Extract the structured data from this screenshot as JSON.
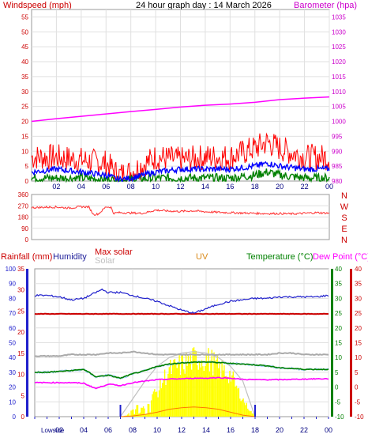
{
  "chart_data": [
    {
      "type": "line",
      "title": "24 hour graph day : 14 March 2026",
      "left_axis_label": "Windspeed (mph)",
      "right_axis_label": "Barometer (hpa)",
      "left_ticks": [
        "0",
        "5",
        "10",
        "15",
        "20",
        "25",
        "30",
        "35",
        "40",
        "45",
        "50",
        "55"
      ],
      "right_ticks": [
        "980",
        "985",
        "990",
        "995",
        "1000",
        "1005",
        "1010",
        "1015",
        "1020",
        "1025",
        "1030",
        "1035"
      ],
      "x_ticks": [
        "02",
        "04",
        "06",
        "08",
        "10",
        "12",
        "14",
        "16",
        "18",
        "20",
        "22",
        "00"
      ],
      "ylim_left": [
        0,
        57.5
      ],
      "ylim_right": [
        980,
        1037.5
      ],
      "grid": true,
      "colors": {
        "windspeed": "#ff0000",
        "average": "#0000ff",
        "calm": "#008000",
        "barometer": "#ff00ff",
        "labels": "#cc0000",
        "baro_labels": "#cc00cc"
      },
      "series": [
        {
          "name": "Barometer (hpa)",
          "x": [
            0,
            2,
            4,
            6,
            8,
            10,
            12,
            14,
            16,
            18,
            20,
            22,
            24
          ],
          "values": [
            1000.0,
            1000.9,
            1001.7,
            1002.5,
            1003.3,
            1004.0,
            1004.8,
            1005.4,
            1005.8,
            1006.4,
            1007.3,
            1007.8,
            1008.2
          ]
        },
        {
          "name": "Windspeed (mph)",
          "x": [
            0,
            2,
            4,
            6,
            7,
            8,
            10,
            12,
            14,
            16,
            18,
            19,
            20,
            22,
            24
          ],
          "values": [
            8,
            8,
            7,
            6,
            2,
            3,
            8,
            7,
            8,
            8,
            11,
            13,
            11,
            8,
            8
          ]
        },
        {
          "name": "",
          "x": [
            0,
            2,
            4,
            6,
            7,
            8,
            10,
            12,
            14,
            16,
            18,
            19,
            20,
            22,
            24
          ],
          "values": [
            3,
            4,
            3,
            2,
            0.5,
            1,
            3,
            4,
            4,
            4,
            5,
            6,
            5,
            4,
            4
          ]
        },
        {
          "name": "",
          "x": [
            0,
            2,
            4,
            6,
            7,
            8,
            10,
            12,
            14,
            16,
            18,
            19,
            20,
            22,
            24
          ],
          "values": [
            1,
            1,
            1,
            0.5,
            0.2,
            0.5,
            1,
            1,
            1,
            1,
            2,
            3,
            2,
            1,
            1
          ]
        }
      ]
    },
    {
      "type": "line",
      "left_ticks": [
        "0",
        "90",
        "180",
        "270",
        "360"
      ],
      "right_labels": [
        "N",
        "W",
        "S",
        "E",
        "N"
      ],
      "ylim": [
        0,
        360
      ],
      "grid": true,
      "series": [
        {
          "name": "",
          "x": [
            0,
            1,
            2,
            3,
            4,
            4.6,
            5,
            5.4,
            6,
            6.4,
            6.6,
            7,
            8,
            9,
            10,
            11,
            12,
            13,
            14,
            15,
            16,
            17,
            18,
            19,
            20,
            21,
            22,
            23,
            24
          ],
          "values": [
            255,
            258,
            260,
            252,
            262,
            260,
            200,
            205,
            262,
            258,
            210,
            215,
            212,
            210,
            235,
            228,
            225,
            230,
            222,
            218,
            215,
            212,
            210,
            207,
            208,
            205,
            210,
            215,
            210
          ]
        }
      ]
    },
    {
      "type": "line",
      "left_axes": [
        {
          "label": "Rainfall (mm)",
          "ticks": [
            "0",
            "10",
            "20",
            "30",
            "40",
            "50",
            "60",
            "70",
            "80",
            "90",
            "100"
          ]
        },
        {
          "label": "Humidity",
          "ticks": [
            "0",
            "5",
            "10",
            "15",
            "20",
            "25",
            "30",
            "35"
          ]
        }
      ],
      "right_axes": [
        {
          "label": "Temperature (°C)",
          "ticks": [
            "-10",
            "-5",
            "0",
            "5",
            "10",
            "15",
            "20",
            "25",
            "30",
            "35",
            "40"
          ]
        },
        {
          "label": "Dew Point (°C)",
          "ticks": [
            "-10",
            "-5",
            "0",
            "5",
            "10",
            "15",
            "20",
            "25",
            "30",
            "35",
            "40"
          ]
        }
      ],
      "legend_labels": {
        "max_solar": "Max solar",
        "solar": "Solar",
        "uv": "UV"
      },
      "sun_label": "Lowside",
      "colors": {
        "humidity": "#2020cc",
        "rain": "#cc0000",
        "solar": "#ffff00",
        "maxsolar": "#c0c0c0",
        "temp": "#008000",
        "dew": "#ff00ff",
        "uv": "#ff7700"
      },
      "series": [
        {
          "name": "Humidity",
          "x": [
            0,
            1,
            2,
            3,
            4,
            5,
            5.5,
            6,
            7,
            8,
            9,
            10,
            11,
            12,
            13,
            14,
            15,
            16,
            17,
            18,
            19,
            20,
            21,
            22,
            23,
            24
          ],
          "values": [
            82,
            82,
            81,
            79,
            80,
            84,
            86,
            84,
            84,
            82,
            80,
            78,
            75,
            72,
            70,
            73,
            76,
            78,
            79,
            80,
            80,
            81,
            81,
            81,
            81,
            82
          ]
        },
        {
          "name": "",
          "x": [
            0,
            24
          ],
          "values": [
            69.5,
            69.5
          ]
        },
        {
          "name": "",
          "x": [
            0,
            1,
            2,
            3,
            4,
            5,
            6,
            7,
            8,
            9,
            10,
            11,
            12,
            13,
            14,
            15,
            16,
            17,
            18,
            19,
            20,
            21,
            22,
            23,
            24
          ],
          "values": [
            41,
            41,
            41,
            42,
            42,
            42,
            43,
            43,
            44,
            43,
            42,
            42,
            42,
            42,
            42,
            42,
            42,
            42,
            42,
            42,
            43,
            43,
            42,
            42,
            42
          ]
        },
        {
          "name": "Temperature (°C)",
          "x": [
            0,
            1,
            2,
            3,
            4,
            5,
            6,
            7,
            8,
            9,
            10,
            11,
            12,
            13,
            14,
            15,
            16,
            17,
            18,
            19,
            20,
            21,
            22,
            23,
            24
          ],
          "values": [
            5,
            5,
            5.3,
            5.6,
            6,
            3.5,
            4,
            3,
            4.5,
            5.5,
            7,
            7.8,
            8.2,
            8.4,
            8.5,
            8.3,
            8,
            7.8,
            7.5,
            7.2,
            6.5,
            6.3,
            6,
            6,
            6
          ]
        },
        {
          "name": "Dew Point (°C)",
          "x": [
            0,
            1,
            2,
            3,
            4,
            5,
            6,
            7,
            8,
            9,
            10,
            11,
            12,
            13,
            14,
            15,
            16,
            17,
            18,
            19,
            20,
            21,
            22,
            23,
            24
          ],
          "values": [
            1.5,
            1.5,
            1.5,
            1.5,
            1.3,
            -0.5,
            1,
            0.5,
            1.5,
            2,
            2.5,
            2.7,
            2.8,
            3,
            3,
            3.2,
            3,
            2.6,
            2.5,
            2.5,
            2.5,
            2.6,
            2.7,
            2.8,
            2.8
          ]
        },
        {
          "name": "Solar",
          "x": [
            7,
            7.5,
            8,
            8.5,
            9,
            9.5,
            10,
            10.5,
            11,
            11.5,
            12,
            12.5,
            13,
            13.5,
            14,
            14.5,
            15,
            15.5,
            16,
            16.5,
            17,
            17.5,
            18
          ],
          "values": [
            0,
            1,
            5,
            10,
            5,
            16,
            18,
            28,
            34,
            36,
            38,
            40,
            42,
            43,
            42,
            40,
            35,
            33,
            30,
            20,
            12,
            5,
            0
          ]
        },
        {
          "name": "Max solar",
          "x": [
            7,
            8,
            9,
            10,
            11,
            12,
            13,
            14,
            15,
            16,
            17,
            18
          ],
          "values": [
            0,
            12,
            24,
            34,
            40,
            43,
            44,
            43,
            40,
            34,
            24,
            0
          ]
        },
        {
          "name": "UV",
          "x": [
            7,
            8,
            9,
            10,
            11,
            12,
            13,
            14,
            15,
            16,
            17,
            18
          ],
          "values": [
            0,
            0.5,
            1.5,
            3,
            5,
            6,
            6.5,
            6,
            5,
            3,
            1,
            0
          ]
        }
      ],
      "x_ticks": [
        "02",
        "04",
        "06",
        "08",
        "10",
        "12",
        "14",
        "16",
        "18",
        "20",
        "22",
        "00"
      ],
      "sun_events": [
        7.0,
        18.0
      ]
    }
  ]
}
